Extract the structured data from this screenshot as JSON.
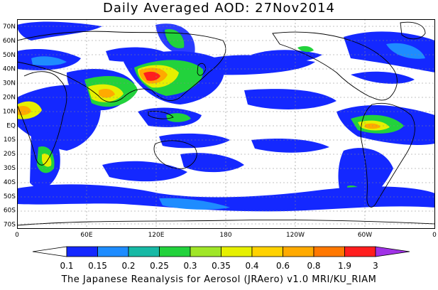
{
  "title": "Daily Averaged AOD: 27Nov2014",
  "credit": "The Japanese Reanalysis for Aerosol (JRAero) v1.0 MRI/KU_RIAM",
  "lat_labels": [
    "70N",
    "60N",
    "50N",
    "40N",
    "30N",
    "20N",
    "10N",
    "EQ",
    "10S",
    "20S",
    "30S",
    "40S",
    "50S",
    "60S",
    "70S"
  ],
  "lon_labels": [
    "0",
    "60E",
    "120E",
    "180",
    "120W",
    "60W",
    "0"
  ],
  "colorbar": {
    "labels": [
      "0.1",
      "0.15",
      "0.2",
      "0.25",
      "0.3",
      "0.35",
      "0.4",
      "0.6",
      "0.8",
      "1.9",
      "3"
    ],
    "colors": [
      "#1428ff",
      "#1e8cff",
      "#17b9a5",
      "#22d23c",
      "#a0e628",
      "#e6f000",
      "#ffd200",
      "#ffaa00",
      "#ff7800",
      "#ff1e1e",
      "#a032e6"
    ]
  },
  "colors": {
    "low": "#1428ff",
    "mid_blue": "#1e8cff",
    "teal": "#17b9a5",
    "green": "#22d23c",
    "lime": "#a0e628",
    "yellow": "#e6f000",
    "gold": "#ffd200",
    "orange": "#ffaa00",
    "dark_orange": "#ff7800",
    "red": "#ff1e1e"
  }
}
